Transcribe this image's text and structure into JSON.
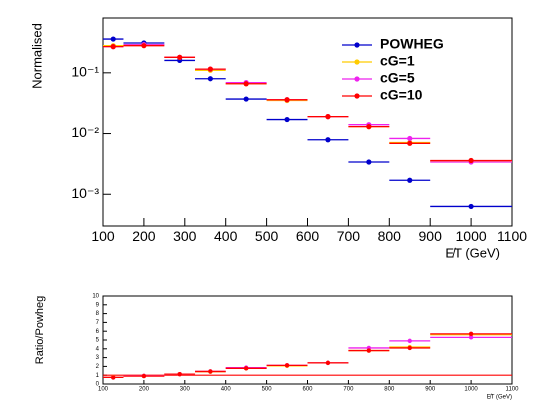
{
  "chart_data": [
    {
      "type": "histogram",
      "ylabel": "Normalised",
      "xlabel": "E̸T (GeV)",
      "log_y": true,
      "legend": "top-right",
      "bins": [
        100,
        150,
        250,
        325,
        400,
        500,
        600,
        700,
        800,
        900,
        1100
      ],
      "xlim": [
        100,
        1100
      ],
      "xticks": [
        100,
        200,
        300,
        400,
        500,
        600,
        700,
        800,
        900,
        1000,
        1100
      ],
      "ylim": [
        0.0003,
        0.8
      ],
      "yticks": [
        {
          "value": 0.001,
          "label": "10⁻³"
        },
        {
          "value": 0.01,
          "label": "10⁻²"
        },
        {
          "value": 0.1,
          "label": "10⁻¹"
        }
      ],
      "series": [
        {
          "name": "POWHEG",
          "color": "#0000cc",
          "values": [
            0.36,
            0.31,
            0.16,
            0.08,
            0.037,
            0.017,
            0.0079,
            0.0034,
            0.0017,
            0.00063
          ]
        },
        {
          "name": "cG=1",
          "color": "#ffcc00",
          "values": [
            0.28,
            0.29,
            0.18,
            0.11,
            0.066,
            0.035,
            0.019,
            0.013,
            0.0071,
            0.0035
          ]
        },
        {
          "name": "cG=5",
          "color": "#ee22ee",
          "values": [
            0.27,
            0.29,
            0.18,
            0.115,
            0.069,
            0.036,
            0.019,
            0.014,
            0.0083,
            0.0034
          ]
        },
        {
          "name": "cG=10",
          "color": "#ff0000",
          "values": [
            0.27,
            0.28,
            0.18,
            0.115,
            0.066,
            0.036,
            0.019,
            0.013,
            0.0069,
            0.0036
          ]
        }
      ]
    },
    {
      "type": "histogram",
      "ylabel": "Ratio/Powheg",
      "xlabel": "E̸T (GeV)",
      "log_y": false,
      "bins": [
        100,
        150,
        250,
        325,
        400,
        500,
        600,
        700,
        800,
        900,
        1100
      ],
      "xlim": [
        100,
        1100
      ],
      "xticks": [
        100,
        200,
        300,
        400,
        500,
        600,
        700,
        800,
        900,
        1000,
        1100
      ],
      "ylim": [
        0,
        10
      ],
      "yticks": [
        0,
        1,
        2,
        3,
        4,
        5,
        6,
        7,
        8,
        9,
        10
      ],
      "reference": 1,
      "reference_color": "#ff0000",
      "series": [
        {
          "color": "#ffcc00",
          "values": [
            0.78,
            0.93,
            1.12,
            1.38,
            1.78,
            2.06,
            2.4,
            3.8,
            4.2,
            5.6
          ]
        },
        {
          "color": "#ee22ee",
          "values": [
            0.75,
            0.93,
            1.12,
            1.43,
            1.86,
            2.12,
            2.4,
            4.1,
            4.9,
            5.3
          ]
        },
        {
          "color": "#ff0000",
          "values": [
            0.75,
            0.9,
            1.12,
            1.43,
            1.78,
            2.12,
            2.4,
            3.8,
            4.1,
            5.7
          ]
        }
      ]
    }
  ]
}
